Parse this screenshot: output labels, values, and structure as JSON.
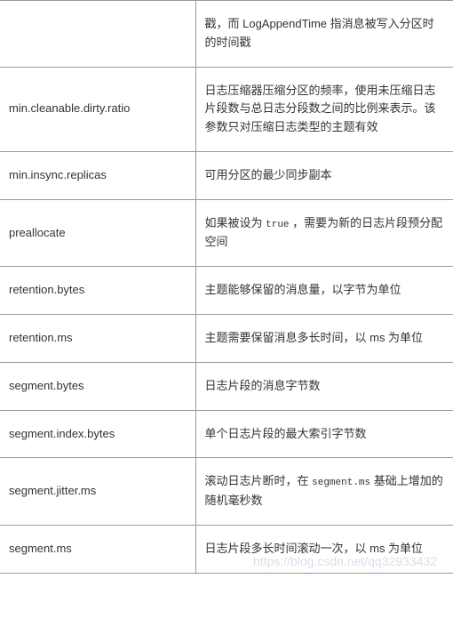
{
  "table": {
    "border_color": "#999999",
    "text_color": "#333333",
    "font_size": 13,
    "col_left_width": 220,
    "rows": [
      {
        "name": "",
        "desc_parts": [
          {
            "t": "text",
            "v": "戳，而 LogAppendTime 指消息被写入分区时的时间戳"
          }
        ]
      },
      {
        "name": "min.cleanable.dirty.ratio",
        "desc_parts": [
          {
            "t": "text",
            "v": "日志压缩器压缩分区的频率，使用未压缩日志片段数与总日志分段数之间的比例来表示。该参数只对压缩日志类型的主题有效"
          }
        ]
      },
      {
        "name": "min.insync.replicas",
        "desc_parts": [
          {
            "t": "text",
            "v": "可用分区的最少同步副本"
          }
        ]
      },
      {
        "name": "preallocate",
        "desc_parts": [
          {
            "t": "text",
            "v": "如果被设为 "
          },
          {
            "t": "code",
            "v": "true"
          },
          {
            "t": "text",
            "v": " ，需要为新的日志片段预分配空间"
          }
        ]
      },
      {
        "name": "retention.bytes",
        "desc_parts": [
          {
            "t": "text",
            "v": "主题能够保留的消息量，以字节为单位"
          }
        ]
      },
      {
        "name": "retention.ms",
        "desc_parts": [
          {
            "t": "text",
            "v": "主题需要保留消息多长时间，以 ms 为单位"
          }
        ]
      },
      {
        "name": "segment.bytes",
        "desc_parts": [
          {
            "t": "text",
            "v": "日志片段的消息字节数"
          }
        ]
      },
      {
        "name": "segment.index.bytes",
        "desc_parts": [
          {
            "t": "text",
            "v": "单个日志片段的最大索引字节数"
          }
        ]
      },
      {
        "name": "segment.jitter.ms",
        "desc_parts": [
          {
            "t": "text",
            "v": "滚动日志片断时，在 "
          },
          {
            "t": "code",
            "v": "segment.ms"
          },
          {
            "t": "text",
            "v": " 基础上增加的随机毫秒数"
          }
        ]
      },
      {
        "name": "segment.ms",
        "desc_parts": [
          {
            "t": "text",
            "v": "日志片段多长时间滚动一次，以 ms 为单位"
          }
        ]
      }
    ]
  },
  "watermark": "https://blog.csdn.net/qq32933432"
}
